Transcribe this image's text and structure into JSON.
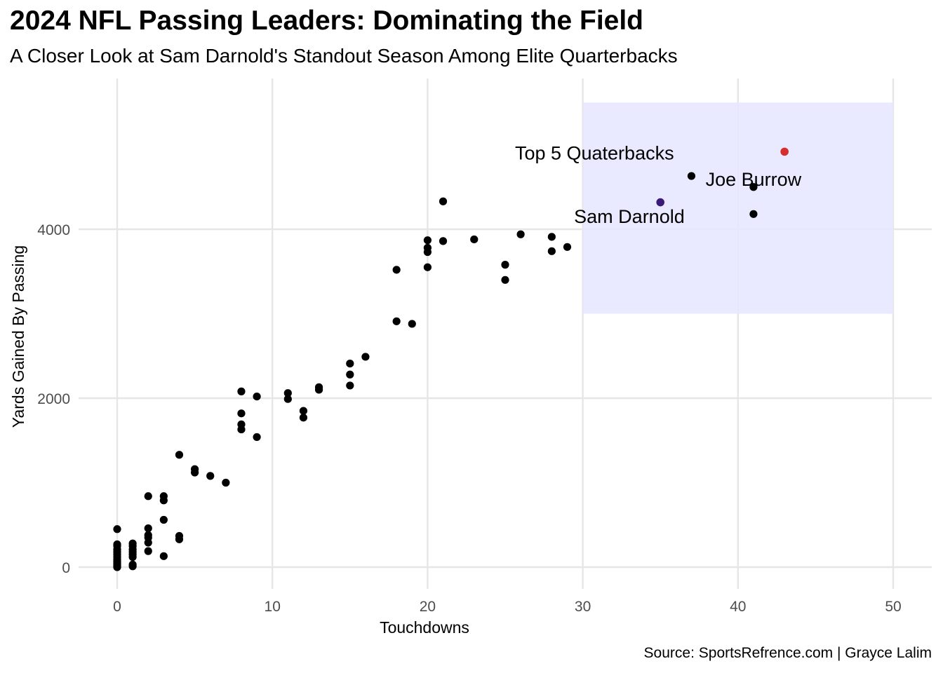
{
  "chart_data": {
    "type": "scatter",
    "title": "2024 NFL Passing Leaders: Dominating the Field",
    "subtitle": "A Closer Look at Sam Darnold's Standout Season Among Elite Quarterbacks",
    "caption": "Source: SportsRefrence.com | Grayce Lalim",
    "xlabel": "Touchdowns",
    "ylabel": "Yards Gained By Passing",
    "xlim": [
      -2,
      52
    ],
    "ylim": [
      -250,
      5800
    ],
    "x_ticks": [
      0,
      10,
      20,
      30,
      40,
      50
    ],
    "y_ticks": [
      0,
      2000,
      4000
    ],
    "grid": true,
    "point_color": "#000000",
    "highlight_region": {
      "x": [
        30,
        50
      ],
      "y": [
        3000,
        5500
      ],
      "color": "#e5e5ff",
      "label": "Top 5 Quaterbacks",
      "label_at": [
        30,
        4900
      ]
    },
    "highlights": [
      {
        "label": "Sam Darnold",
        "x": 35,
        "y": 4319,
        "color": "#3a1a78",
        "label_at": [
          33,
          4150
        ]
      },
      {
        "label": "Joe Burrow",
        "x": 43,
        "y": 4918,
        "color": "#d62d2d",
        "label_at": [
          41,
          4590
        ]
      }
    ],
    "points": [
      {
        "x": 0,
        "y": 0
      },
      {
        "x": 0,
        "y": 10
      },
      {
        "x": 0,
        "y": 20
      },
      {
        "x": 0,
        "y": 35
      },
      {
        "x": 0,
        "y": 50
      },
      {
        "x": 0,
        "y": 70
      },
      {
        "x": 0,
        "y": 90
      },
      {
        "x": 0,
        "y": 120
      },
      {
        "x": 0,
        "y": 150
      },
      {
        "x": 0,
        "y": 180
      },
      {
        "x": 0,
        "y": 210
      },
      {
        "x": 0,
        "y": 250
      },
      {
        "x": 0,
        "y": 270
      },
      {
        "x": 0,
        "y": 450
      },
      {
        "x": 1,
        "y": 10
      },
      {
        "x": 1,
        "y": 30
      },
      {
        "x": 1,
        "y": 120
      },
      {
        "x": 1,
        "y": 150
      },
      {
        "x": 1,
        "y": 180
      },
      {
        "x": 1,
        "y": 210
      },
      {
        "x": 1,
        "y": 250
      },
      {
        "x": 1,
        "y": 280
      },
      {
        "x": 2,
        "y": 190
      },
      {
        "x": 2,
        "y": 290
      },
      {
        "x": 2,
        "y": 350
      },
      {
        "x": 2,
        "y": 380
      },
      {
        "x": 2,
        "y": 460
      },
      {
        "x": 2,
        "y": 840
      },
      {
        "x": 3,
        "y": 130
      },
      {
        "x": 3,
        "y": 560
      },
      {
        "x": 3,
        "y": 790
      },
      {
        "x": 3,
        "y": 840
      },
      {
        "x": 4,
        "y": 330
      },
      {
        "x": 4,
        "y": 370
      },
      {
        "x": 4,
        "y": 1330
      },
      {
        "x": 5,
        "y": 1120
      },
      {
        "x": 5,
        "y": 1160
      },
      {
        "x": 6,
        "y": 1080
      },
      {
        "x": 7,
        "y": 1000
      },
      {
        "x": 8,
        "y": 1630
      },
      {
        "x": 8,
        "y": 1690
      },
      {
        "x": 8,
        "y": 1820
      },
      {
        "x": 8,
        "y": 2080
      },
      {
        "x": 9,
        "y": 1540
      },
      {
        "x": 9,
        "y": 2020
      },
      {
        "x": 11,
        "y": 1990
      },
      {
        "x": 11,
        "y": 2060
      },
      {
        "x": 12,
        "y": 1770
      },
      {
        "x": 12,
        "y": 1850
      },
      {
        "x": 13,
        "y": 2100
      },
      {
        "x": 13,
        "y": 2130
      },
      {
        "x": 15,
        "y": 2150
      },
      {
        "x": 15,
        "y": 2280
      },
      {
        "x": 15,
        "y": 2410
      },
      {
        "x": 16,
        "y": 2490
      },
      {
        "x": 18,
        "y": 2910
      },
      {
        "x": 18,
        "y": 3520
      },
      {
        "x": 19,
        "y": 2880
      },
      {
        "x": 20,
        "y": 3550
      },
      {
        "x": 20,
        "y": 3730
      },
      {
        "x": 20,
        "y": 3780
      },
      {
        "x": 20,
        "y": 3870
      },
      {
        "x": 21,
        "y": 3860
      },
      {
        "x": 21,
        "y": 4330
      },
      {
        "x": 23,
        "y": 3880
      },
      {
        "x": 25,
        "y": 3400
      },
      {
        "x": 25,
        "y": 3580
      },
      {
        "x": 26,
        "y": 3940
      },
      {
        "x": 28,
        "y": 3740
      },
      {
        "x": 28,
        "y": 3910
      },
      {
        "x": 29,
        "y": 3790
      },
      {
        "x": 37,
        "y": 4630
      },
      {
        "x": 41,
        "y": 4180
      },
      {
        "x": 41,
        "y": 4500
      }
    ]
  }
}
